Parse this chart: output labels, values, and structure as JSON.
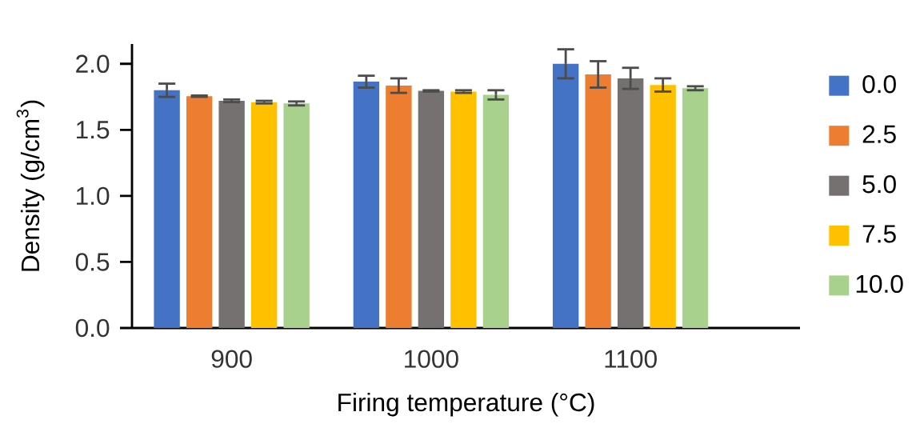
{
  "chart_data": {
    "type": "bar",
    "xlabel": "Firing temperature (°C)",
    "ylabel": "Density (g/cm$^{3}$)",
    "categories": [
      "900",
      "1000",
      "1100"
    ],
    "series": [
      {
        "name": "0.0",
        "color": "#4472c4",
        "values": [
          1.8,
          1.865,
          2.0
        ],
        "errors": [
          0.05,
          0.045,
          0.11
        ]
      },
      {
        "name": "2.5",
        "color": "#ed7d31",
        "values": [
          1.755,
          1.835,
          1.92
        ],
        "errors": [
          0.005,
          0.055,
          0.1
        ]
      },
      {
        "name": "5.0",
        "color": "#767171",
        "values": [
          1.72,
          1.795,
          1.89
        ],
        "errors": [
          0.01,
          0.005,
          0.08
        ]
      },
      {
        "name": "7.5",
        "color": "#ffc000",
        "values": [
          1.71,
          1.79,
          1.84
        ],
        "errors": [
          0.01,
          0.01,
          0.05
        ]
      },
      {
        "name": "10.0",
        "color": "#a9d18e",
        "values": [
          1.7,
          1.765,
          1.815
        ],
        "errors": [
          0.015,
          0.035,
          0.015
        ]
      }
    ],
    "ylim": [
      0,
      2.15
    ],
    "yticks": [
      {
        "value": 0,
        "label": "0.0"
      },
      0.5,
      {
        "value": 1,
        "label": "1.0"
      },
      1.5,
      {
        "value": 2,
        "label": "2.0"
      }
    ],
    "legend": "right",
    "grid": false
  }
}
